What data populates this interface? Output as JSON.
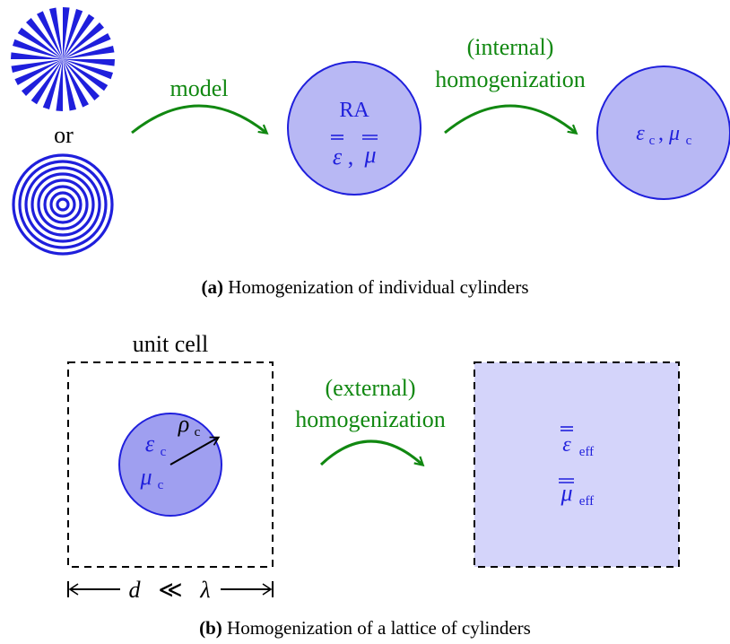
{
  "panel_a": {
    "or_label": "or",
    "model_label": "model",
    "internal_label_1": "(internal)",
    "internal_label_2": "homogenization",
    "ra_label": "RA",
    "ra_eps": "ε",
    "ra_mu": "μ",
    "ra_sep": ",",
    "c_eps": "ε",
    "c_mu": "μ",
    "c_sub": "c",
    "c_sep": ",",
    "caption_bold": "(a)",
    "caption_text": " Homogenization of individual cylinders"
  },
  "panel_b": {
    "unit_cell_label": "unit cell",
    "cyl_eps": "ε",
    "cyl_mu": "μ",
    "cyl_rho": "ρ",
    "cyl_sub": "c",
    "external_label_1": "(external)",
    "external_label_2": "homogenization",
    "eff_eps": "ε",
    "eff_mu": "μ",
    "eff_sub": "eff",
    "dim_d": "d",
    "dim_ll": "≪",
    "dim_lambda": "λ",
    "caption_bold": "(b)",
    "caption_text": " Homogenization of a lattice of cylinders"
  },
  "colors": {
    "blue_stroke": "#1f1fdc",
    "circle_fill": "#b8b8f4",
    "cylinder_fill": "#9f9ff0",
    "eff_fill": "#d4d4fa",
    "arrow_green": "#118811",
    "text_green": "#118811"
  }
}
